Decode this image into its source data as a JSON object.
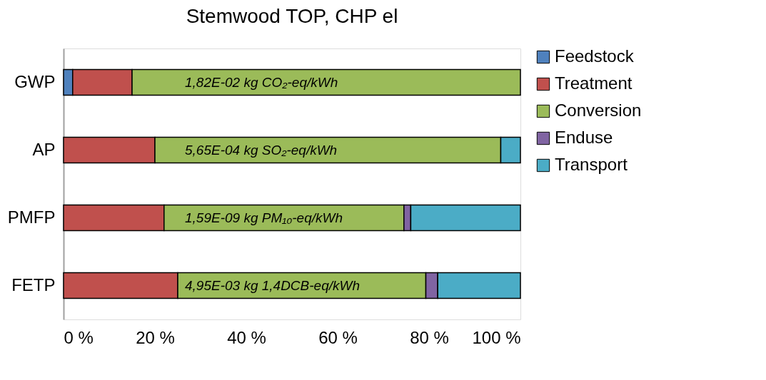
{
  "chart_data": {
    "type": "bar",
    "orientation": "horizontal",
    "stacked": true,
    "title": "Stemwood TOP, CHP el",
    "categories": [
      "GWP",
      "AP",
      "PMFP",
      "FETP"
    ],
    "series": [
      {
        "name": "Feedstock",
        "color": "#4f81bd",
        "values": [
          2.0,
          null,
          null,
          null
        ]
      },
      {
        "name": "Treatment",
        "color": "#c0504d",
        "values": [
          13.0,
          20.0,
          22.0,
          25.0
        ]
      },
      {
        "name": "Conversion",
        "color": "#9bbb59",
        "values": [
          85.0,
          75.7,
          52.5,
          54.3
        ]
      },
      {
        "name": "Enduse",
        "color": "#8064a2",
        "values": [
          null,
          null,
          1.5,
          2.6
        ]
      },
      {
        "name": "Transport",
        "color": "#4bacc6",
        "values": [
          null,
          4.3,
          24.0,
          18.1
        ]
      }
    ],
    "xlim": [
      0,
      100
    ],
    "xticks": [
      {
        "value": 0,
        "label": "0 %"
      },
      {
        "value": 20,
        "label": "20 %"
      },
      {
        "value": 40,
        "label": "40 %"
      },
      {
        "value": 60,
        "label": "60 %"
      },
      {
        "value": 80,
        "label": "80 %"
      },
      {
        "value": 100,
        "label": "100 %"
      }
    ],
    "annotations": [
      "1,82E-02 kg CO₂-eq/kWh",
      "5,65E-04 kg SO₂-eq/kWh",
      "1,59E-09 kg PM₁₀-eq/kWh",
      "4,95E-03 kg 1,4DCB-eq/kWh"
    ],
    "legend": "right",
    "grid": false
  }
}
